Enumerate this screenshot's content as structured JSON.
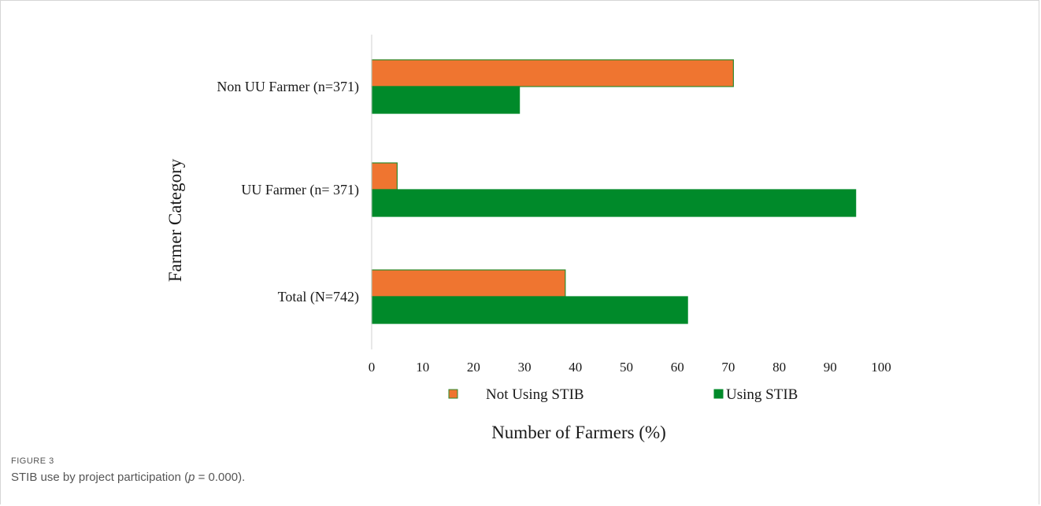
{
  "chart_data": {
    "type": "bar",
    "orientation": "horizontal",
    "categories": [
      "Non UU Farmer (n=371)",
      "UU Farmer (n= 371)",
      "Total (N=742)"
    ],
    "series": [
      {
        "name": "Not Using STIB",
        "values": [
          71,
          5,
          38
        ],
        "color": "#ef7530",
        "stroke": "#2e8b2e"
      },
      {
        "name": "Using STIB",
        "values": [
          29,
          95,
          62
        ],
        "color": "#008a2a",
        "stroke": "#008a2a"
      }
    ],
    "xlabel": "Number of Farmers (%)",
    "ylabel": "Farmer Category",
    "xlim": [
      0,
      100
    ],
    "xticks": [
      0,
      10,
      20,
      30,
      40,
      50,
      60,
      70,
      80,
      90,
      100
    ],
    "grid": false,
    "legend_position": "bottom"
  },
  "caption": {
    "label": "FIGURE 3",
    "text_before": "STIB use by project participation (",
    "text_italic": "p",
    "text_after": " = 0.000)."
  }
}
